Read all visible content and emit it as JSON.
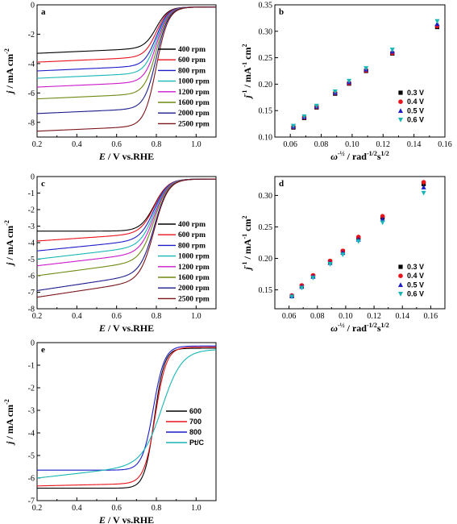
{
  "figure": {
    "colors": {
      "400": "#000000",
      "600": "#e8121b",
      "800": "#1c1cc8",
      "1000": "#18b6b6",
      "1200": "#cc18cc",
      "1600": "#6e8a12",
      "2000": "#1a1a8c",
      "2500": "#7a1418",
      "pt": "#18b6b6",
      "e600": "#000000",
      "e700": "#e8121b",
      "e800": "#1c1cc8",
      "v03": "#000000",
      "v04": "#e8121b",
      "v05": "#1c1cc8",
      "v06": "#18b6b6"
    }
  },
  "chart_data": [
    {
      "panel": "a",
      "type": "line",
      "xlabel_sym": "E",
      "xlabel_rest": " / V vs.RHE",
      "ylabel_sym": "j",
      "ylabel_rest": " / mA cm",
      "ylabel_sup": "-2",
      "xlim": [
        0.2,
        1.1
      ],
      "ylim": [
        -9,
        0
      ],
      "xticks": [
        "0.2",
        "0.4",
        "0.6",
        "0.8",
        "1.0"
      ],
      "xtick_values": [
        0.2,
        0.4,
        0.6,
        0.8,
        1.0
      ],
      "yticks": [
        "0",
        "-2",
        "-4",
        "-6",
        "-8"
      ],
      "ytick_values": [
        0,
        -2,
        -4,
        -6,
        -8
      ],
      "legend_position": "right",
      "e_half": 0.8,
      "width": 0.03,
      "series": [
        {
          "name": "400 rpm",
          "color_key": "400",
          "limit": -3.3,
          "slope": 0.3
        },
        {
          "name": "600 rpm",
          "color_key": "600",
          "limit": -3.9,
          "slope": 0.3
        },
        {
          "name": "800 rpm",
          "color_key": "800",
          "limit": -4.5,
          "slope": 0.3
        },
        {
          "name": "1000 rpm",
          "color_key": "1000",
          "limit": -5.0,
          "slope": 0.3
        },
        {
          "name": "1200 rpm",
          "color_key": "1200",
          "limit": -5.6,
          "slope": 0.3
        },
        {
          "name": "1600 rpm",
          "color_key": "1600",
          "limit": -6.4,
          "slope": 0.3
        },
        {
          "name": "2000 rpm",
          "color_key": "2000",
          "limit": -7.4,
          "slope": 0.3
        },
        {
          "name": "2500 rpm",
          "color_key": "2500",
          "limit": -8.6,
          "slope": 0.3
        }
      ]
    },
    {
      "panel": "b",
      "type": "scatter",
      "xlabel_sym": "ω",
      "xlabel_sup1": "-½",
      "xlabel_rest": " / rad",
      "xlabel_sup2": "-1/2",
      "xlabel_rest2": "s",
      "xlabel_sup3": "1/2",
      "ylabel_sym": "j",
      "ylabel_sup1": "-1",
      "ylabel_rest": " / mA",
      "ylabel_sup2": "-1",
      "ylabel_rest2": " cm",
      "ylabel_sup3": "2",
      "xlim": [
        0.05,
        0.16
      ],
      "ylim": [
        0.1,
        0.35
      ],
      "xticks": [
        "0.06",
        "0.08",
        "0.10",
        "0.12",
        "0.14",
        "0.16"
      ],
      "xtick_values": [
        0.06,
        0.08,
        0.1,
        0.12,
        0.14,
        0.16
      ],
      "yticks": [
        "0.10",
        "0.15",
        "0.20",
        "0.25",
        "0.30",
        "0.35"
      ],
      "ytick_values": [
        0.1,
        0.15,
        0.2,
        0.25,
        0.3,
        0.35
      ],
      "legend_position": "bottom-right",
      "x": [
        0.062,
        0.069,
        0.077,
        0.089,
        0.098,
        0.109,
        0.126,
        0.155
      ],
      "series": [
        {
          "name": "0.3 V",
          "marker": "square",
          "color_key": "v03",
          "values": [
            0.118,
            0.136,
            0.156,
            0.182,
            0.201,
            0.225,
            0.258,
            0.308
          ]
        },
        {
          "name": "0.4 V",
          "marker": "circle",
          "color_key": "v04",
          "values": [
            0.119,
            0.137,
            0.157,
            0.183,
            0.202,
            0.226,
            0.259,
            0.31
          ]
        },
        {
          "name": "0.5 V",
          "marker": "triangle",
          "color_key": "v05",
          "values": [
            0.12,
            0.138,
            0.158,
            0.184,
            0.204,
            0.228,
            0.262,
            0.314
          ]
        },
        {
          "name": "0.6 V",
          "marker": "triangle-down",
          "color_key": "v06",
          "values": [
            0.121,
            0.139,
            0.159,
            0.186,
            0.206,
            0.23,
            0.265,
            0.319
          ]
        }
      ]
    },
    {
      "panel": "c",
      "type": "line",
      "xlabel_sym": "E",
      "xlabel_rest": " / V vs.RHE",
      "ylabel_sym": "j",
      "ylabel_rest": " / mA cm",
      "ylabel_sup": "-2",
      "xlim": [
        0.2,
        1.1
      ],
      "ylim": [
        -8,
        0
      ],
      "xticks": [
        "0.2",
        "0.4",
        "0.6",
        "0.8",
        "1.0"
      ],
      "xtick_values": [
        0.2,
        0.4,
        0.6,
        0.8,
        1.0
      ],
      "yticks": [
        "0",
        "-1",
        "-2",
        "-3",
        "-4",
        "-5",
        "-6",
        "-7",
        "-8"
      ],
      "ytick_values": [
        0,
        -1,
        -2,
        -3,
        -4,
        -5,
        -6,
        -7,
        -8
      ],
      "legend_position": "right",
      "e_half": 0.79,
      "width": 0.035,
      "series": [
        {
          "name": "400 rpm",
          "color_key": "400",
          "limit": -3.3,
          "slope": 0.0
        },
        {
          "name": "600 rpm",
          "color_key": "600",
          "limit": -3.9,
          "slope": 0.4
        },
        {
          "name": "800 rpm",
          "color_key": "800",
          "limit": -4.5,
          "slope": 0.6
        },
        {
          "name": "1000 rpm",
          "color_key": "1000",
          "limit": -5.0,
          "slope": 0.7
        },
        {
          "name": "1200 rpm",
          "color_key": "1200",
          "limit": -5.4,
          "slope": 0.7
        },
        {
          "name": "1600 rpm",
          "color_key": "1600",
          "limit": -6.0,
          "slope": 0.8
        },
        {
          "name": "2000 rpm",
          "color_key": "2000",
          "limit": -6.9,
          "slope": 0.9
        },
        {
          "name": "2500 rpm",
          "color_key": "2500",
          "limit": -7.3,
          "slope": 0.9
        }
      ]
    },
    {
      "panel": "d",
      "type": "scatter",
      "xlabel_sym": "ω",
      "xlabel_sup1": "-½",
      "xlabel_rest": " / rad",
      "xlabel_sup2": "-1/2",
      "xlabel_rest2": "s",
      "xlabel_sup3": "1/2",
      "ylabel_sym": "j",
      "ylabel_sup1": "-1",
      "ylabel_rest": " / mA",
      "ylabel_sup2": "-1",
      "ylabel_rest2": " cm",
      "ylabel_sup3": "2",
      "xlim": [
        0.05,
        0.17
      ],
      "ylim": [
        0.12,
        0.33
      ],
      "xticks": [
        "0.06",
        "0.08",
        "0.10",
        "0.12",
        "0.14",
        "0.16"
      ],
      "xtick_values": [
        0.06,
        0.08,
        0.1,
        0.12,
        0.14,
        0.16
      ],
      "yticks": [
        "0.15",
        "0.20",
        "0.25",
        "0.30"
      ],
      "ytick_values": [
        0.15,
        0.2,
        0.25,
        0.3
      ],
      "legend_position": "bottom-right",
      "x": [
        0.062,
        0.069,
        0.077,
        0.089,
        0.098,
        0.109,
        0.126,
        0.155
      ],
      "series": [
        {
          "name": "0.3 V",
          "marker": "square",
          "color_key": "v03",
          "values": [
            0.14,
            0.156,
            0.172,
            0.195,
            0.211,
            0.232,
            0.265,
            0.318
          ]
        },
        {
          "name": "0.4 V",
          "marker": "circle",
          "color_key": "v04",
          "values": [
            0.141,
            0.157,
            0.173,
            0.196,
            0.212,
            0.234,
            0.267,
            0.321
          ]
        },
        {
          "name": "0.5 V",
          "marker": "triangle",
          "color_key": "v05",
          "values": [
            0.14,
            0.155,
            0.171,
            0.193,
            0.209,
            0.23,
            0.262,
            0.313
          ]
        },
        {
          "name": "0.6 V",
          "marker": "triangle-down",
          "color_key": "v06",
          "values": [
            0.139,
            0.153,
            0.169,
            0.191,
            0.206,
            0.227,
            0.257,
            0.304
          ]
        }
      ]
    },
    {
      "panel": "e",
      "type": "line",
      "xlabel_sym": "E",
      "xlabel_rest": " / V vs.RHE",
      "ylabel_sym": "j",
      "ylabel_rest": " / mA cm",
      "ylabel_sup": "-2",
      "xlim": [
        0.2,
        1.1
      ],
      "ylim": [
        -7,
        0
      ],
      "xticks": [
        "0.2",
        "0.4",
        "0.6",
        "0.8",
        "1.0"
      ],
      "xtick_values": [
        0.2,
        0.4,
        0.6,
        0.8,
        1.0
      ],
      "yticks": [
        "0",
        "-1",
        "-2",
        "-3",
        "-4",
        "-5",
        "-6",
        "-7"
      ],
      "ytick_values": [
        0,
        -1,
        -2,
        -3,
        -4,
        -5,
        -6,
        -7
      ],
      "legend_position": "right",
      "series": [
        {
          "name": "600",
          "color_key": "e600",
          "limit": -6.45,
          "slope": 0.0,
          "e_half": 0.79,
          "width": 0.025,
          "offset": -0.25
        },
        {
          "name": "700",
          "color_key": "e700",
          "limit": -6.35,
          "slope": 0.1,
          "e_half": 0.795,
          "width": 0.028,
          "offset": -0.2
        },
        {
          "name": "800",
          "color_key": "e800",
          "limit": -5.65,
          "slope": 0.0,
          "e_half": 0.785,
          "width": 0.028,
          "offset": -0.15
        },
        {
          "name": "Pt/C",
          "color_key": "pt",
          "limit": -6.0,
          "slope": 0.5,
          "e_half": 0.83,
          "width": 0.05,
          "offset": -0.3
        }
      ]
    }
  ]
}
